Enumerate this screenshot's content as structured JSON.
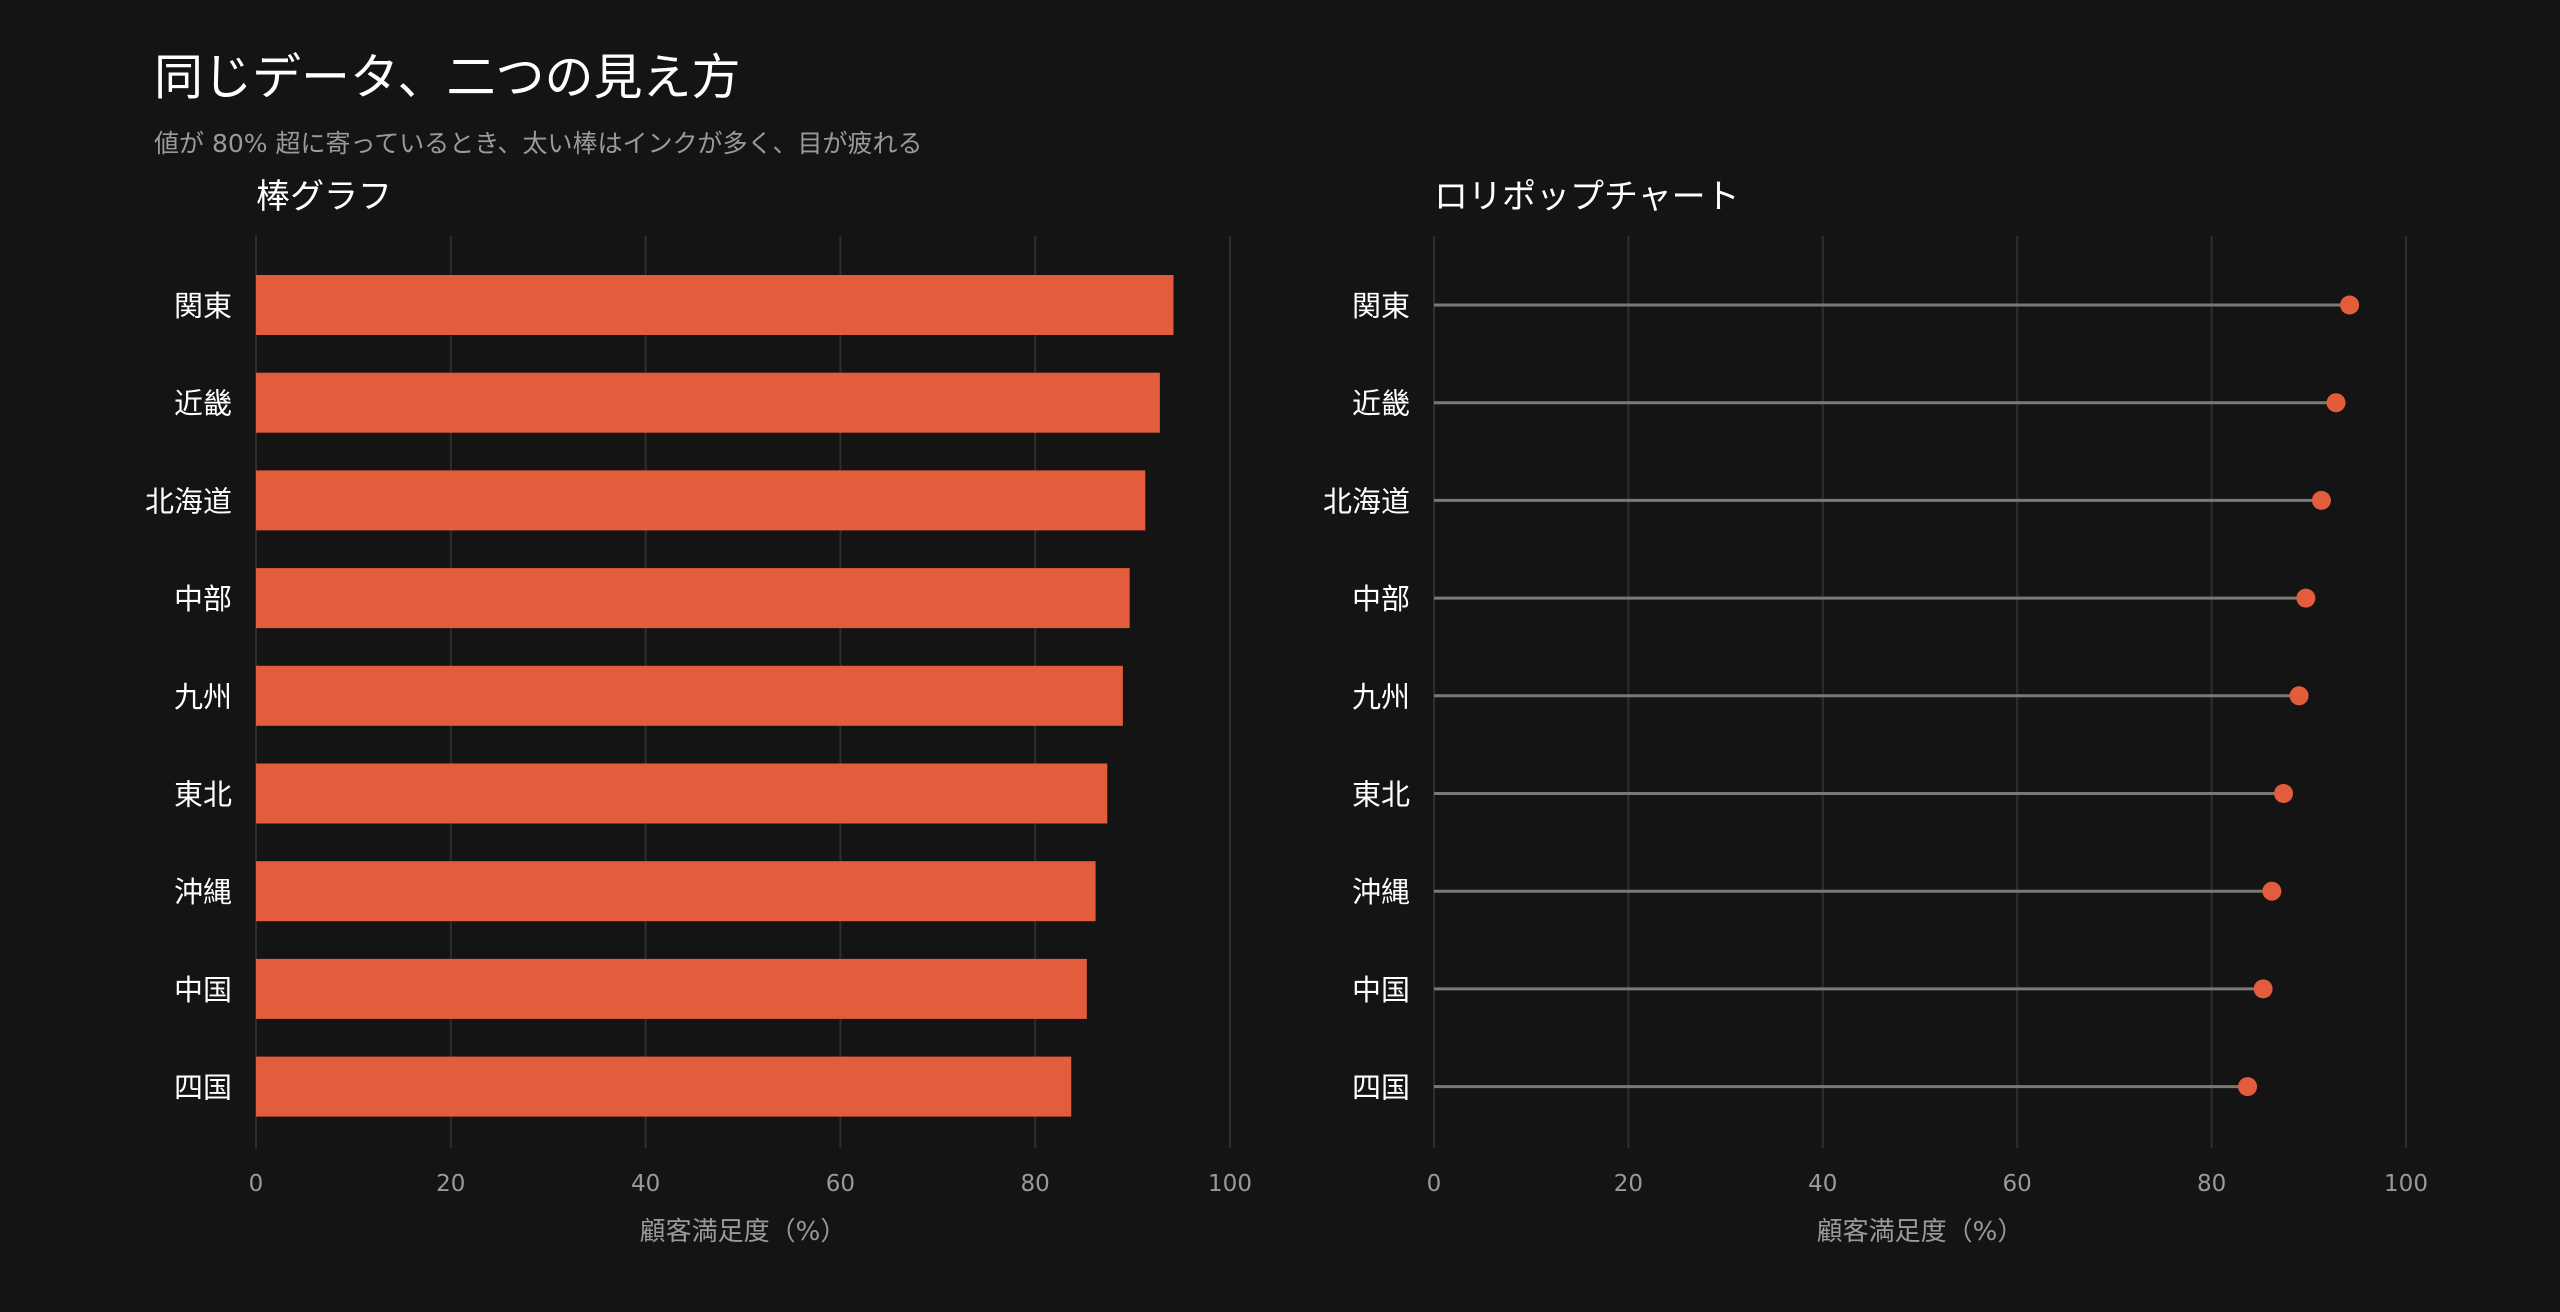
{
  "title": "同じデータ、二つの見え方",
  "subtitle": "値が 80% 超に寄っているとき、太い棒はインクが多く、目が疲れる",
  "colors": {
    "background": "#141414",
    "accent": "#e35d3d",
    "stem": "#7a7a72",
    "grid": "#2e2e2e",
    "text": "#ffffff",
    "muted": "#9a9a9a"
  },
  "chart_data": [
    {
      "type": "bar",
      "orientation": "horizontal",
      "title": "棒グラフ",
      "categories": [
        "関東",
        "近畿",
        "北海道",
        "中部",
        "九州",
        "東北",
        "沖縄",
        "中国",
        "四国"
      ],
      "values": [
        94.2,
        92.8,
        91.3,
        89.7,
        89.0,
        87.4,
        86.2,
        85.3,
        83.7
      ],
      "xlabel": "顧客満足度（%）",
      "xlim": [
        0,
        100
      ],
      "xticks": [
        "0",
        "20",
        "40",
        "60",
        "80",
        "100"
      ],
      "grid": true,
      "legend": "none"
    },
    {
      "type": "lollipop",
      "orientation": "horizontal",
      "title": "ロリポップチャート",
      "categories": [
        "関東",
        "近畿",
        "北海道",
        "中部",
        "九州",
        "東北",
        "沖縄",
        "中国",
        "四国"
      ],
      "values": [
        94.2,
        92.8,
        91.3,
        89.7,
        89.0,
        87.4,
        86.2,
        85.3,
        83.7
      ],
      "xlabel": "顧客満足度（%）",
      "xlim": [
        0,
        100
      ],
      "xticks": [
        "0",
        "20",
        "40",
        "60",
        "80",
        "100"
      ],
      "grid": true,
      "legend": "none"
    }
  ]
}
